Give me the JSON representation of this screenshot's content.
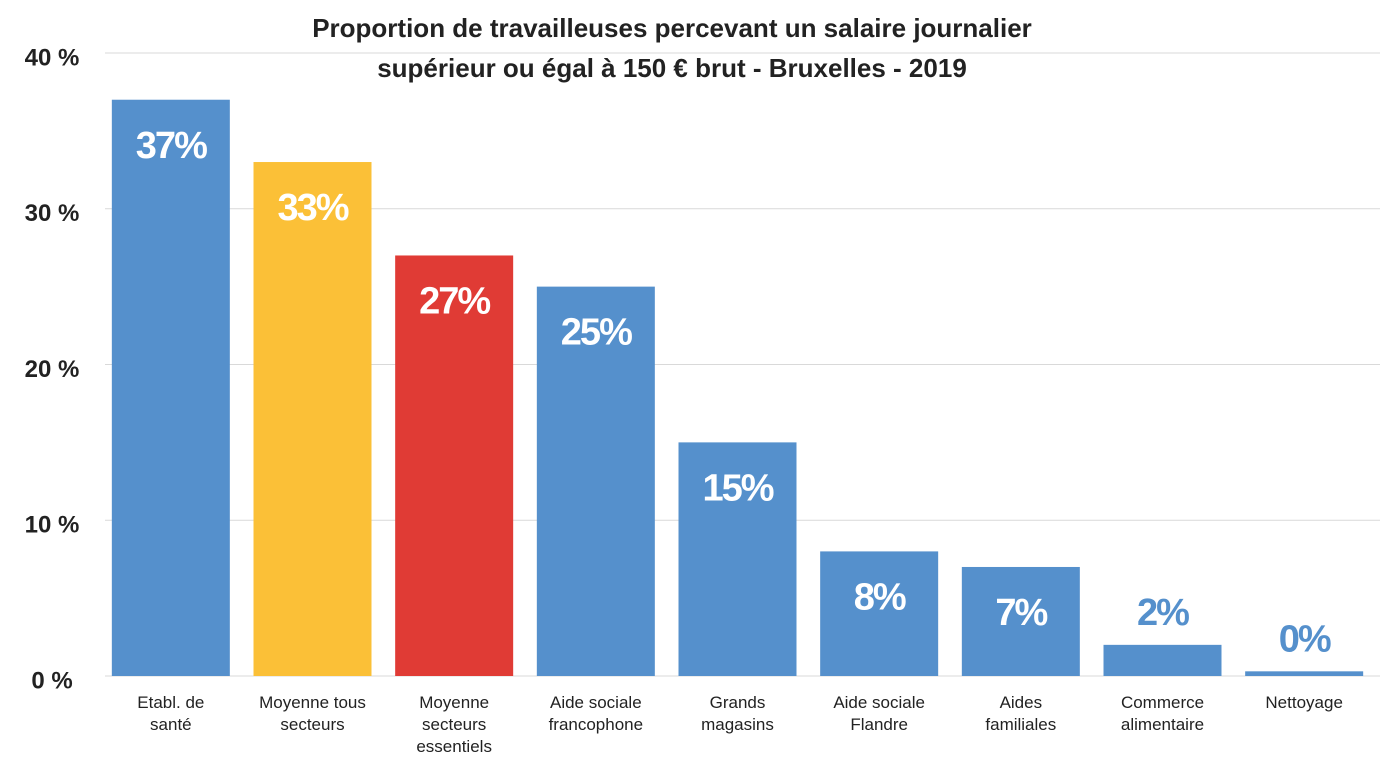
{
  "chart_data": {
    "type": "bar",
    "title": [
      "Proportion de travailleuses percevant un salaire journalier",
      "supérieur ou égal à 150 € brut - Bruxelles - 2019"
    ],
    "categories": [
      "Etabl. de santé",
      "Moyenne tous secteurs",
      "Moyenne secteurs essentiels",
      "Aide sociale francophone",
      "Grands magasins",
      "Aide sociale Flandre",
      "Aides familiales",
      "Commerce alimentaire",
      "Nettoyage"
    ],
    "values": [
      37,
      33,
      27,
      25,
      15,
      8,
      7,
      2,
      0.3
    ],
    "value_labels": [
      "37%",
      "33%",
      "27%",
      "25%",
      "15%",
      "8%",
      "7%",
      "2%",
      "0%"
    ],
    "colors": [
      "#5590cc",
      "#fbc037",
      "#e03b35",
      "#5590cc",
      "#5590cc",
      "#5590cc",
      "#5590cc",
      "#5590cc",
      "#5590cc"
    ],
    "ylim": [
      0,
      40
    ],
    "yticks": [
      {
        "value": 0,
        "label": "0 %"
      },
      {
        "value": 10,
        "label": "10 %"
      },
      {
        "value": 20,
        "label": "20 %"
      },
      {
        "value": 30,
        "label": "30 %"
      },
      {
        "value": 40,
        "label": "40 %"
      }
    ],
    "grid": true
  }
}
